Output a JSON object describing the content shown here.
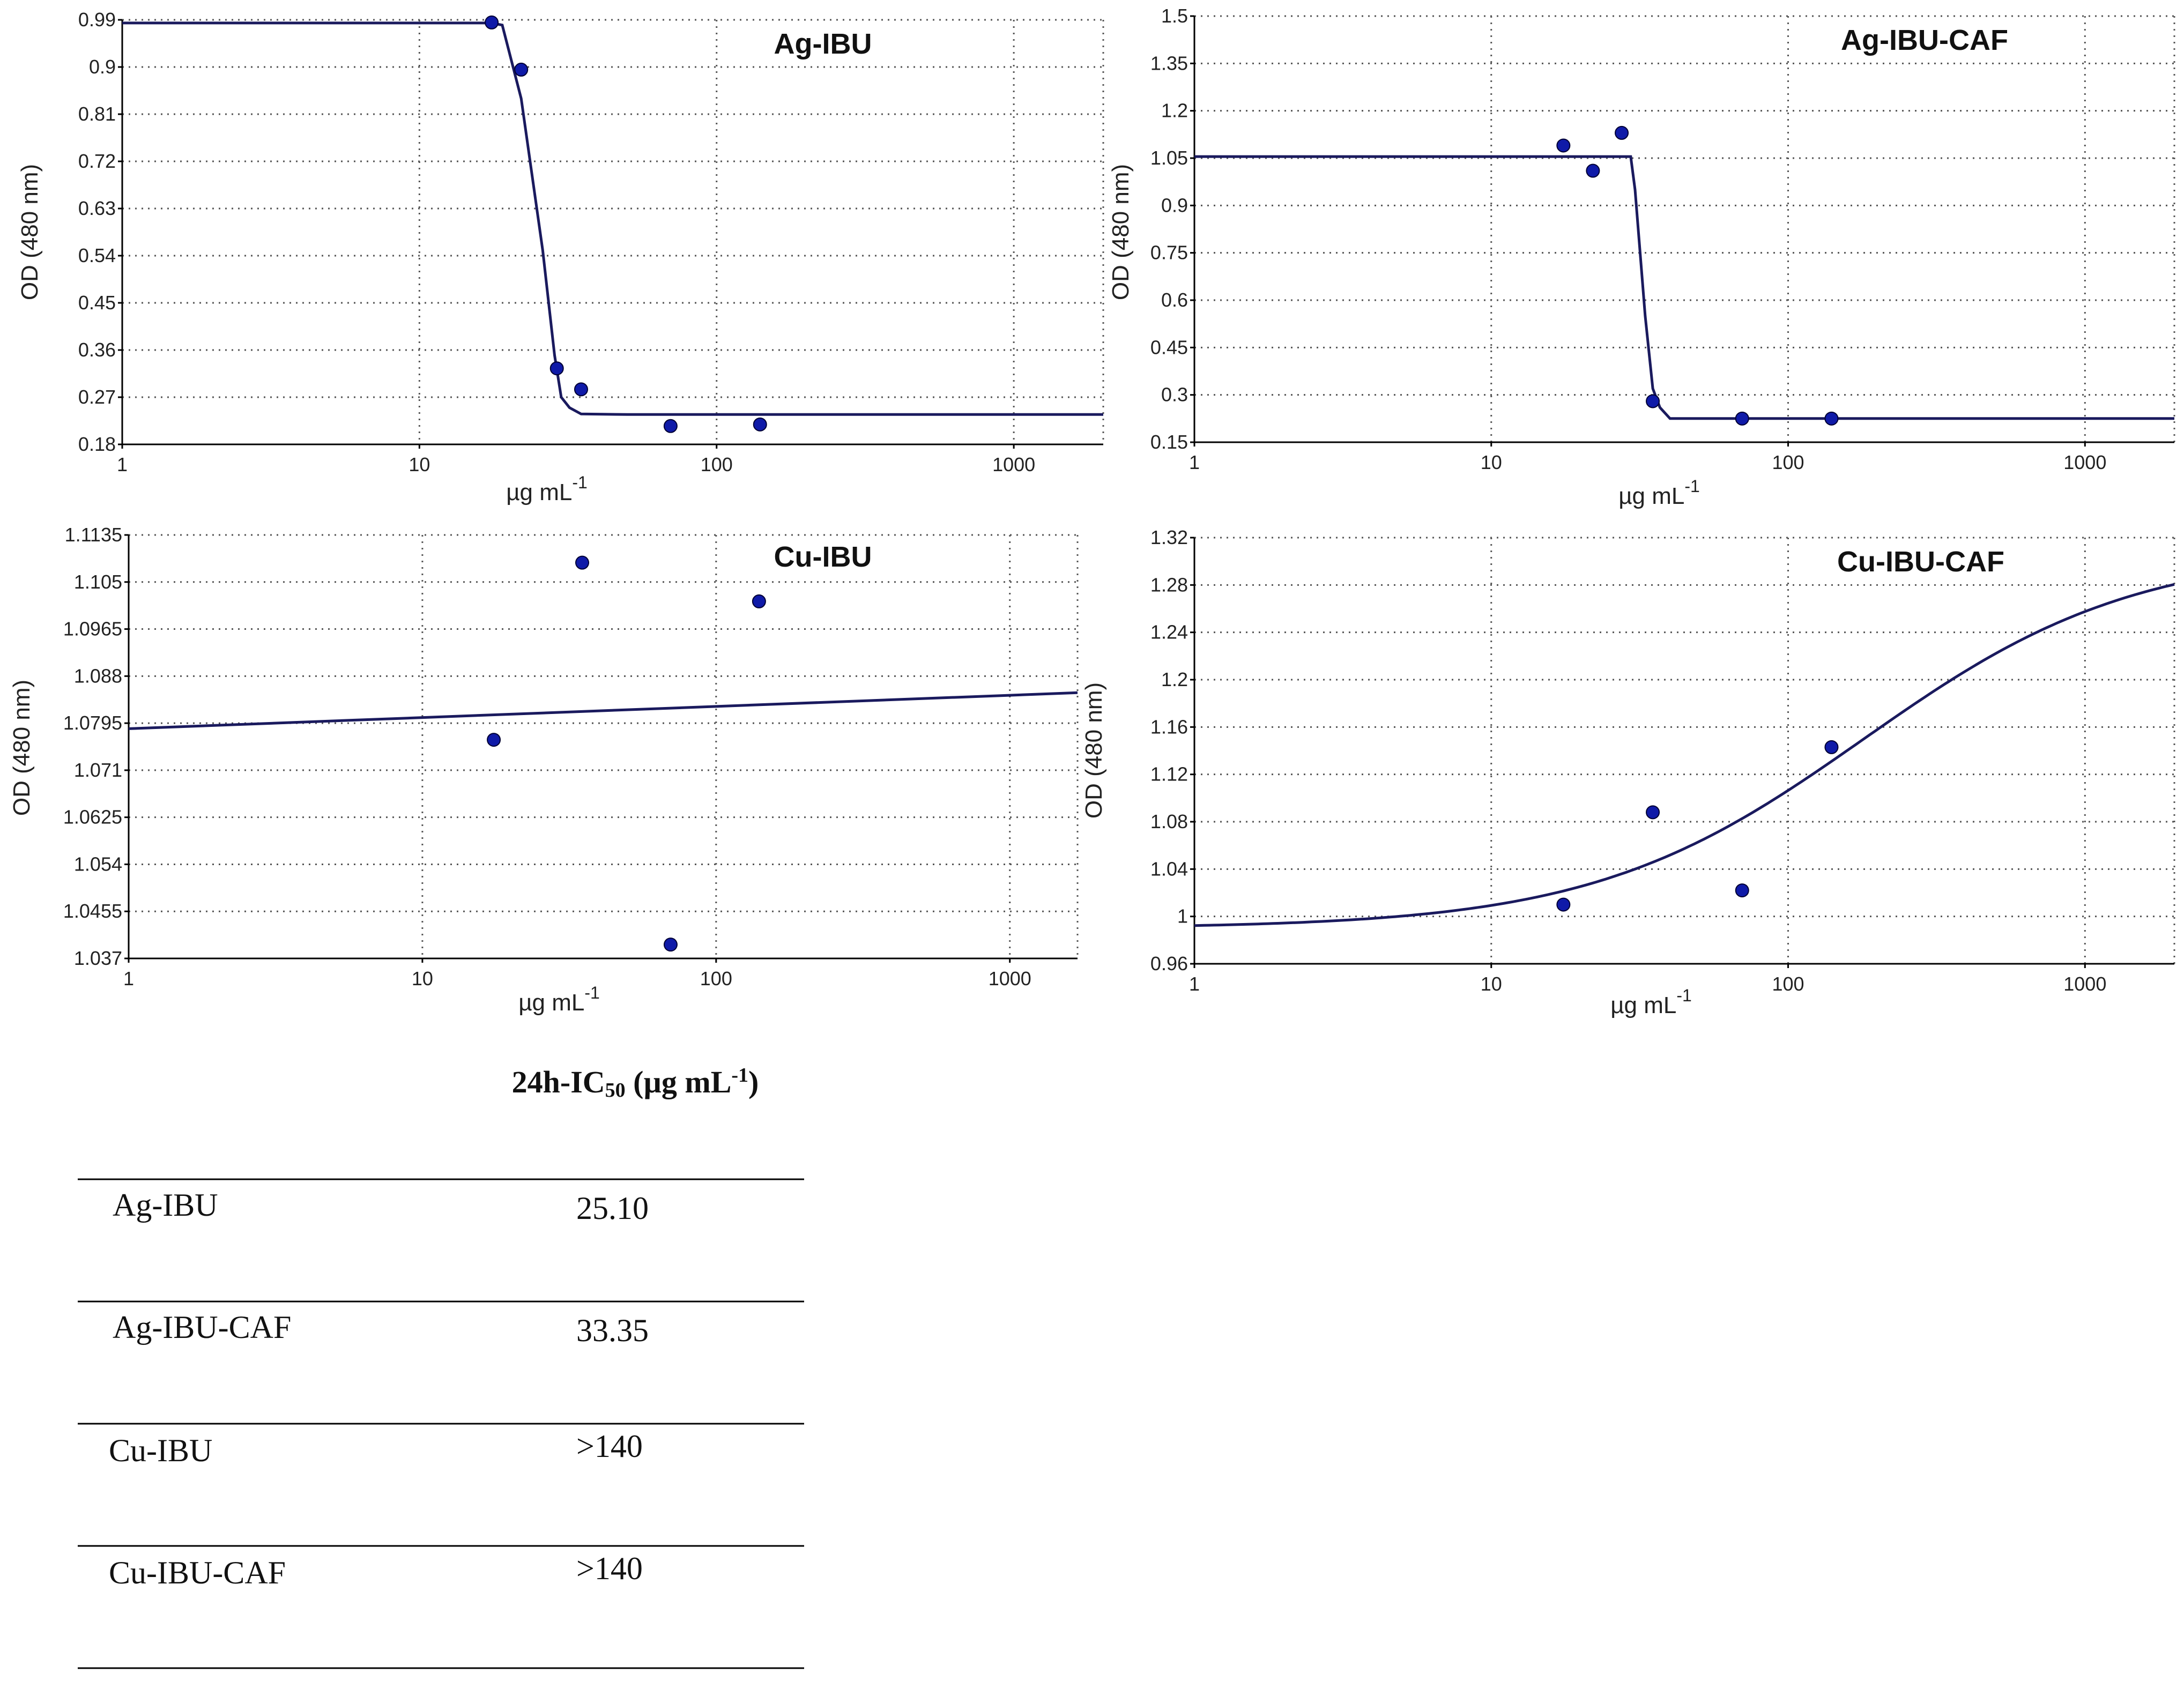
{
  "chart_data": [
    {
      "type": "scatter",
      "title": "Ag-IBU",
      "xlabel": "µg mL",
      "xlabel_sup": "-1",
      "ylabel": "OD (480 nm)",
      "xscale": "log",
      "xlim": [
        1,
        2000
      ],
      "ylim": [
        0.18,
        0.99
      ],
      "xticks": [
        1,
        10,
        100,
        1000
      ],
      "xtick_labels": [
        "1",
        "10",
        "100",
        "1000"
      ],
      "yticks": [
        0.18,
        0.27,
        0.36,
        0.45,
        0.54,
        0.63,
        0.72,
        0.81,
        0.9,
        0.99
      ],
      "ytick_labels": [
        "0.18",
        "0.27",
        "0.36",
        "0.45",
        "0.54",
        "0.63",
        "0.72",
        "0.81",
        "0.9",
        "0.99"
      ],
      "points": {
        "x": [
          17.5,
          22,
          29,
          35,
          70,
          140
        ],
        "y": [
          0.985,
          0.895,
          0.325,
          0.285,
          0.215,
          0.218
        ]
      },
      "fit": {
        "x": [
          1,
          17.5,
          19,
          22,
          26,
          28.5,
          30,
          32,
          35,
          50,
          100,
          2000
        ],
        "y": [
          0.984,
          0.984,
          0.98,
          0.84,
          0.55,
          0.35,
          0.27,
          0.25,
          0.238,
          0.237,
          0.237,
          0.237
        ]
      }
    },
    {
      "type": "scatter",
      "title": "Ag-IBU-CAF",
      "xlabel": "µg mL",
      "xlabel_sup": "-1",
      "ylabel": "OD (480 nm)",
      "xscale": "log",
      "xlim": [
        1,
        2000
      ],
      "ylim": [
        0.15,
        1.5
      ],
      "xticks": [
        1,
        10,
        100,
        1000
      ],
      "xtick_labels": [
        "1",
        "10",
        "100",
        "1000"
      ],
      "yticks": [
        0.15,
        0.3,
        0.45,
        0.6,
        0.75,
        0.9,
        1.05,
        1.2,
        1.35,
        1.5
      ],
      "ytick_labels": [
        "0.15",
        "0.3",
        "0.45",
        "0.6",
        "0.75",
        "0.9",
        "1.05",
        "1.2",
        "1.35",
        "1.5"
      ],
      "points": {
        "x": [
          17.5,
          22,
          27.5,
          35,
          70,
          140
        ],
        "y": [
          1.09,
          1.01,
          1.13,
          0.28,
          0.225,
          0.225
        ]
      },
      "fit": {
        "x": [
          1,
          29.5,
          30.5,
          33,
          35,
          37,
          40,
          2000
        ],
        "y": [
          1.055,
          1.055,
          0.95,
          0.55,
          0.32,
          0.26,
          0.225,
          0.225
        ]
      }
    },
    {
      "type": "scatter",
      "title": "Cu-IBU",
      "xlabel": "µg mL",
      "xlabel_sup": "-1",
      "ylabel": "OD (480 nm)",
      "xscale": "log",
      "xlim": [
        1,
        1700
      ],
      "ylim": [
        1.037,
        1.1135
      ],
      "xticks": [
        1,
        10,
        100,
        1000
      ],
      "xtick_labels": [
        "1",
        "10",
        "100",
        "1000"
      ],
      "yticks": [
        1.037,
        1.0455,
        1.054,
        1.0625,
        1.071,
        1.0795,
        1.088,
        1.0965,
        1.105,
        1.1135
      ],
      "ytick_labels": [
        "1.037",
        "1.0455",
        "1.054",
        "1.0625",
        "1.071",
        "1.0795",
        "1.088",
        "1.0965",
        "1.105",
        "1.1135"
      ],
      "points": {
        "x": [
          17.5,
          35,
          70,
          140
        ],
        "y": [
          1.0765,
          1.1085,
          1.0395,
          1.1015
        ]
      },
      "fit": {
        "x": [
          1,
          1700
        ],
        "y": [
          1.0785,
          1.085
        ]
      }
    },
    {
      "type": "scatter",
      "title": "Cu-IBU-CAF",
      "xlabel": "µg mL",
      "xlabel_sup": "-1",
      "ylabel": "OD (480 nm)",
      "xscale": "log",
      "xlim": [
        1,
        2000
      ],
      "ylim": [
        0.96,
        1.32
      ],
      "xticks": [
        1,
        10,
        100,
        1000
      ],
      "xtick_labels": [
        "1",
        "10",
        "100",
        "1000"
      ],
      "yticks": [
        0.96,
        1.0,
        1.04,
        1.08,
        1.12,
        1.16,
        1.2,
        1.24,
        1.28,
        1.32
      ],
      "ytick_labels": [
        "0.96",
        "1",
        "1.04",
        "1.08",
        "1.12",
        "1.16",
        "1.2",
        "1.24",
        "1.28",
        "1.32"
      ],
      "points": {
        "x": [
          17.5,
          35,
          70,
          140
        ],
        "y": [
          1.01,
          1.088,
          1.022,
          1.143
        ]
      },
      "fit": {
        "model": "logistic",
        "bottom": 0.99,
        "top": 1.31,
        "ec50": 180,
        "hill": 0.95
      }
    }
  ],
  "table": {
    "title_main": "24h-IC",
    "title_sub": "50",
    "title_unit": " (µg mL",
    "title_sup": "-1",
    "title_close": ")",
    "rows": [
      {
        "compound": "Ag-IBU",
        "value": "25.10"
      },
      {
        "compound": "Ag-IBU-CAF",
        "value": "33.35"
      },
      {
        "compound": "Cu-IBU",
        "value": ">140"
      },
      {
        "compound": "Cu-IBU-CAF",
        "value": ">140"
      }
    ]
  },
  "colors": {
    "fit": "#1a1a5e",
    "point": "#0f1aa8",
    "grid": "#555555"
  }
}
